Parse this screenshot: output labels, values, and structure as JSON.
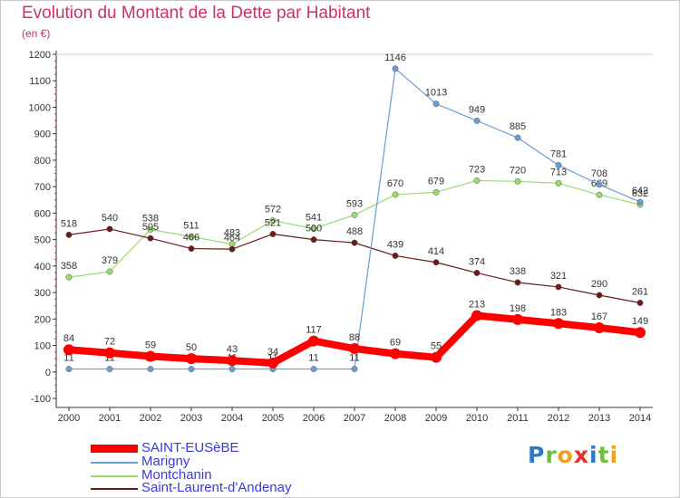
{
  "title": "Evolution du Montant de la Dette par Habitant",
  "unit": "(en €)",
  "logo": {
    "letters": [
      {
        "char": "P",
        "color": "#2b7bc6"
      },
      {
        "char": "r",
        "color": "#6cbf3b"
      },
      {
        "char": "o",
        "color": "#f0a020"
      },
      {
        "char": "x",
        "color": "#e8302a"
      },
      {
        "char": "i",
        "color": "#2b7bc6"
      },
      {
        "char": "t",
        "color": "#6cbf3b"
      },
      {
        "char": "i",
        "color": "#f0a020"
      }
    ]
  },
  "chart_data": {
    "type": "line",
    "title": "Evolution du Montant de la Dette par Habitant",
    "subtitle": "(en €)",
    "xlabel": "",
    "ylabel": "",
    "x": [
      "2000",
      "2001",
      "2002",
      "2003",
      "2004",
      "2005",
      "2006",
      "2007",
      "2008",
      "2009",
      "2010",
      "2011",
      "2012",
      "2013",
      "2014"
    ],
    "y_ticks": [
      "-100",
      "0",
      "100",
      "200",
      "300",
      "400",
      "500",
      "600",
      "700",
      "800",
      "900",
      "1000",
      "1100",
      "1200"
    ],
    "ylim": [
      -100,
      1200
    ],
    "grid": false,
    "legend": "bottom-left",
    "series": [
      {
        "name": "SAINT-EUSèBE",
        "color": "#ff0000",
        "values": [
          84,
          72,
          59,
          50,
          43,
          34,
          117,
          88,
          69,
          55,
          213,
          198,
          183,
          167,
          149
        ],
        "labels": [
          "84",
          "72",
          "59",
          "50",
          "43",
          "34",
          "117",
          "88",
          "69",
          "55",
          "213",
          "198",
          "183",
          "167",
          "149"
        ]
      },
      {
        "name": "Marigny",
        "color": "#6a9fd4",
        "values": [
          11,
          11,
          11,
          11,
          11,
          11,
          11,
          11,
          1146,
          1013,
          949,
          885,
          781,
          708,
          642
        ],
        "labels": [
          "11",
          "11",
          "11",
          "11",
          "11",
          "11",
          "11",
          "11",
          "1146",
          "1013",
          "949",
          "885",
          "781",
          "708",
          "642"
        ]
      },
      {
        "name": "Montchanin",
        "color": "#98dc70",
        "values": [
          358,
          379,
          538,
          511,
          483,
          572,
          541,
          593,
          670,
          679,
          723,
          720,
          713,
          669,
          632
        ],
        "labels": [
          "358",
          "379",
          "538",
          "511",
          "483",
          "572",
          "541",
          "593",
          "670",
          "679",
          "723",
          "720",
          "713",
          "669",
          "632"
        ]
      },
      {
        "name": "Saint-Laurent-d'Andenay",
        "color": "#6b1a1a",
        "values": [
          518,
          540,
          505,
          466,
          464,
          521,
          500,
          488,
          439,
          414,
          374,
          338,
          321,
          290,
          261
        ],
        "labels": [
          "518",
          "540",
          "505",
          "466",
          "464",
          "521",
          "500",
          "488",
          "439",
          "414",
          "374",
          "338",
          "321",
          "290",
          "261"
        ]
      }
    ]
  }
}
